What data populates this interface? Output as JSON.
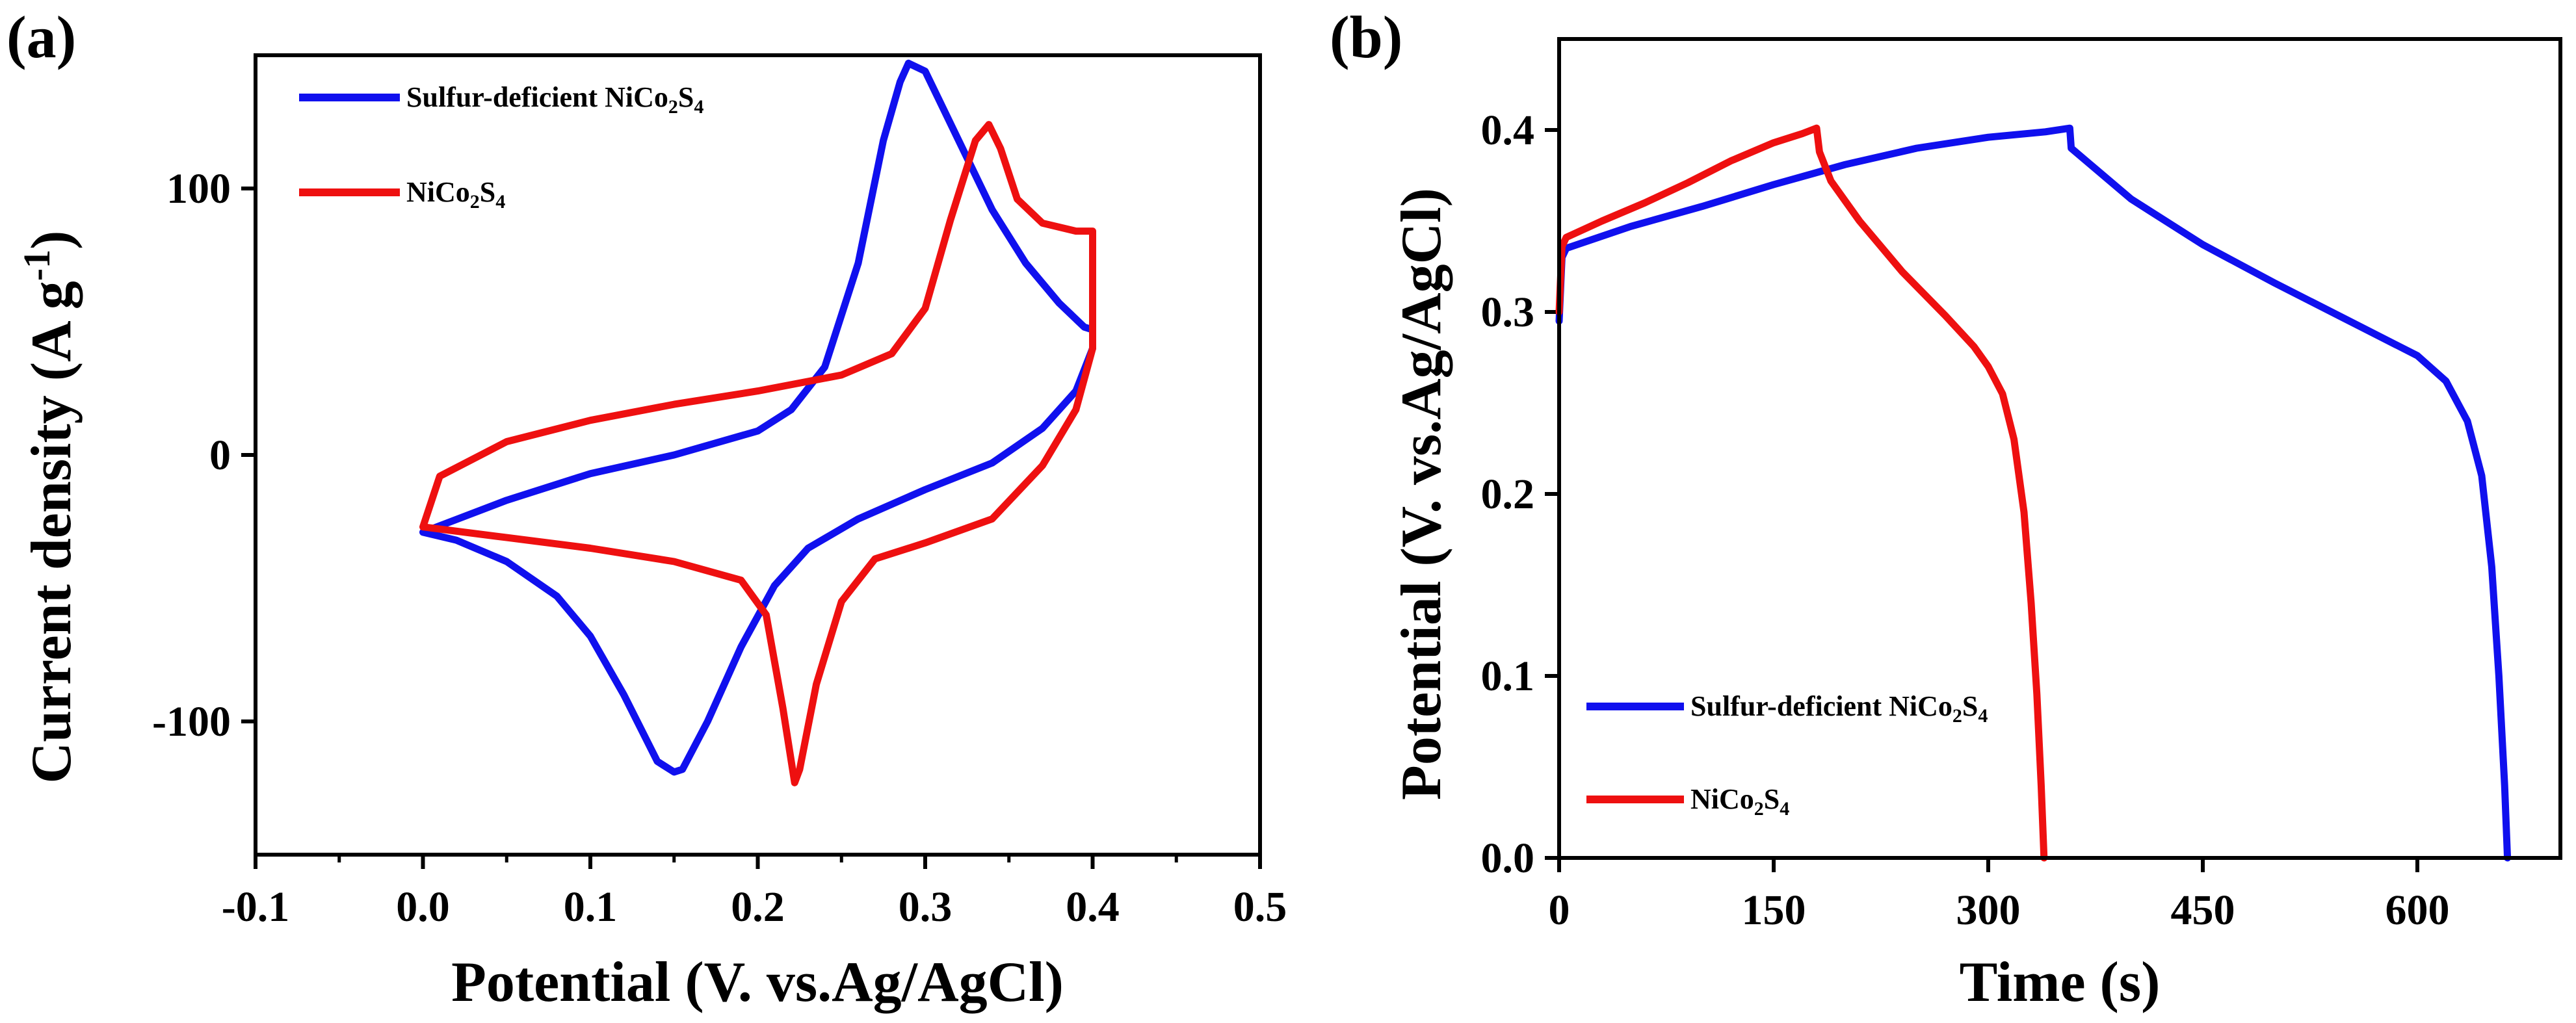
{
  "chart_data": [
    {
      "type": "line",
      "panel_label": "(a)",
      "title": "",
      "xlabel": "Potential (V. vs.Ag/AgCl)",
      "ylabel": "Current density (A g",
      "ylabel_sup": "-1",
      "ylabel_close": ")",
      "xlim": [
        -0.1,
        0.5
      ],
      "ylim": [
        -150,
        150
      ],
      "x_ticks": [
        -0.1,
        0.0,
        0.1,
        0.2,
        0.3,
        0.4,
        0.5
      ],
      "x_tick_labels": [
        "-0.1",
        "0.0",
        "0.1",
        "0.2",
        "0.3",
        "0.4",
        "0.5"
      ],
      "y_ticks": [
        100,
        0,
        -100
      ],
      "y_tick_labels": [
        "100",
        "0",
        "-100"
      ],
      "grid": false,
      "legend_position": "top-left",
      "series": [
        {
          "name": "Sulfur-deficient NiCo2S4",
          "label_main": "Sulfur-deficient NiCo",
          "label_sub1": "2",
          "label_mid": "S",
          "label_sub2": "4",
          "color": "#1010ee",
          "points": [
            [
              0.0,
              -29
            ],
            [
              0.05,
              -17
            ],
            [
              0.1,
              -7
            ],
            [
              0.15,
              0
            ],
            [
              0.2,
              9
            ],
            [
              0.22,
              17
            ],
            [
              0.24,
              33
            ],
            [
              0.26,
              72
            ],
            [
              0.275,
              118
            ],
            [
              0.285,
              140
            ],
            [
              0.29,
              147
            ],
            [
              0.3,
              144
            ],
            [
              0.32,
              118
            ],
            [
              0.34,
              92
            ],
            [
              0.36,
              72
            ],
            [
              0.38,
              57
            ],
            [
              0.395,
              48
            ],
            [
              0.4,
              47
            ],
            [
              0.4,
              40
            ],
            [
              0.39,
              24
            ],
            [
              0.37,
              10
            ],
            [
              0.34,
              -3
            ],
            [
              0.3,
              -13
            ],
            [
              0.26,
              -24
            ],
            [
              0.23,
              -35
            ],
            [
              0.21,
              -49
            ],
            [
              0.19,
              -72
            ],
            [
              0.17,
              -100
            ],
            [
              0.155,
              -118
            ],
            [
              0.15,
              -119
            ],
            [
              0.14,
              -115
            ],
            [
              0.12,
              -90
            ],
            [
              0.1,
              -68
            ],
            [
              0.08,
              -53
            ],
            [
              0.05,
              -40
            ],
            [
              0.02,
              -32
            ],
            [
              0.0,
              -29
            ]
          ]
        },
        {
          "name": "NiCo2S4",
          "label_main": "NiCo",
          "label_sub1": "2",
          "label_mid": "S",
          "label_sub2": "4",
          "color": "#ee1010",
          "points": [
            [
              0.0,
              -27
            ],
            [
              0.01,
              -8
            ],
            [
              0.05,
              5
            ],
            [
              0.1,
              13
            ],
            [
              0.15,
              19
            ],
            [
              0.2,
              24
            ],
            [
              0.25,
              30
            ],
            [
              0.28,
              38
            ],
            [
              0.3,
              55
            ],
            [
              0.315,
              88
            ],
            [
              0.33,
              118
            ],
            [
              0.338,
              124
            ],
            [
              0.345,
              115
            ],
            [
              0.355,
              96
            ],
            [
              0.37,
              87
            ],
            [
              0.39,
              84
            ],
            [
              0.4,
              84
            ],
            [
              0.4,
              40
            ],
            [
              0.39,
              17
            ],
            [
              0.37,
              -4
            ],
            [
              0.34,
              -24
            ],
            [
              0.3,
              -33
            ],
            [
              0.27,
              -39
            ],
            [
              0.25,
              -55
            ],
            [
              0.235,
              -86
            ],
            [
              0.225,
              -118
            ],
            [
              0.222,
              -123
            ],
            [
              0.215,
              -95
            ],
            [
              0.205,
              -60
            ],
            [
              0.19,
              -47
            ],
            [
              0.15,
              -40
            ],
            [
              0.1,
              -35
            ],
            [
              0.05,
              -31
            ],
            [
              0.0,
              -27
            ]
          ]
        }
      ]
    },
    {
      "type": "line",
      "panel_label": "(b)",
      "title": "",
      "xlabel": "Time (s)",
      "ylabel": "Potential (V. vs.Ag/AgCl)",
      "xlim": [
        0,
        700
      ],
      "ylim": [
        0,
        0.45
      ],
      "x_ticks": [
        0,
        150,
        300,
        450,
        600
      ],
      "x_tick_labels": [
        "0",
        "150",
        "300",
        "450",
        "600"
      ],
      "y_ticks": [
        0.0,
        0.1,
        0.2,
        0.3,
        0.4
      ],
      "y_tick_labels": [
        "0.0",
        "0.1",
        "0.2",
        "0.3",
        "0.4"
      ],
      "grid": false,
      "legend_position": "bottom-left",
      "series": [
        {
          "name": "Sulfur-deficient NiCo2S4",
          "label_main": "Sulfur-deficient NiCo",
          "label_sub1": "2",
          "label_mid": "S",
          "label_sub2": "4",
          "color": "#1010ee",
          "points": [
            [
              0,
              0.295
            ],
            [
              2,
              0.33
            ],
            [
              5,
              0.335
            ],
            [
              50,
              0.347
            ],
            [
              100,
              0.358
            ],
            [
              150,
              0.37
            ],
            [
              200,
              0.381
            ],
            [
              250,
              0.39
            ],
            [
              300,
              0.396
            ],
            [
              340,
              0.399
            ],
            [
              357,
              0.401
            ],
            [
              358,
              0.39
            ],
            [
              370,
              0.382
            ],
            [
              400,
              0.362
            ],
            [
              450,
              0.337
            ],
            [
              500,
              0.316
            ],
            [
              550,
              0.296
            ],
            [
              600,
              0.276
            ],
            [
              620,
              0.262
            ],
            [
              635,
              0.24
            ],
            [
              645,
              0.21
            ],
            [
              652,
              0.16
            ],
            [
              657,
              0.1
            ],
            [
              661,
              0.04
            ],
            [
              663,
              0.0
            ]
          ]
        },
        {
          "name": "NiCo2S4",
          "label_main": "NiCo",
          "label_sub1": "2",
          "label_mid": "S",
          "label_sub2": "4",
          "color": "#ee1010",
          "points": [
            [
              0,
              0.3
            ],
            [
              2,
              0.336
            ],
            [
              5,
              0.341
            ],
            [
              30,
              0.35
            ],
            [
              60,
              0.36
            ],
            [
              90,
              0.371
            ],
            [
              120,
              0.383
            ],
            [
              150,
              0.393
            ],
            [
              170,
              0.398
            ],
            [
              180,
              0.401
            ],
            [
              182,
              0.388
            ],
            [
              190,
              0.372
            ],
            [
              210,
              0.35
            ],
            [
              240,
              0.322
            ],
            [
              270,
              0.298
            ],
            [
              290,
              0.281
            ],
            [
              300,
              0.27
            ],
            [
              310,
              0.255
            ],
            [
              318,
              0.23
            ],
            [
              325,
              0.19
            ],
            [
              330,
              0.14
            ],
            [
              334,
              0.09
            ],
            [
              337,
              0.04
            ],
            [
              339,
              0.0
            ]
          ]
        }
      ]
    }
  ]
}
